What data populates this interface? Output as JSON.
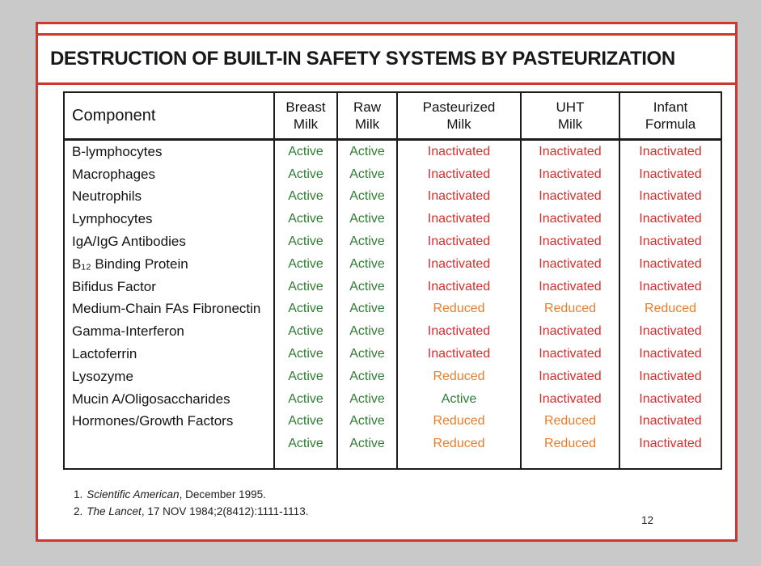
{
  "window": {
    "background_color": "#c9c9c9",
    "page_number": "12"
  },
  "slide": {
    "title": "DESTRUCTION OF BUILT-IN SAFETY SYSTEMS BY PASTEURIZATION",
    "accent_color": "#c9392f",
    "background_color": "#ffffff"
  },
  "table": {
    "headers": [
      "Component",
      "Breast\nMilk",
      "Raw\nMilk",
      "Pasteurized\nMilk",
      "UHT\nMilk",
      "Infant\nFormula"
    ],
    "status_colors": {
      "Active": "#2e7d32",
      "Inactivated": "#d32f2f",
      "Reduced": "#e87d2c"
    },
    "rows": [
      {
        "component": "B-lymphocytes",
        "values": [
          "Active",
          "Active",
          "Inactivated",
          "Inactivated",
          "Inactivated"
        ]
      },
      {
        "component": "Macrophages",
        "values": [
          "Active",
          "Active",
          "Inactivated",
          "Inactivated",
          "Inactivated"
        ]
      },
      {
        "component": "Neutrophils",
        "values": [
          "Active",
          "Active",
          "Inactivated",
          "Inactivated",
          "Inactivated"
        ]
      },
      {
        "component": "Lymphocytes",
        "values": [
          "Active",
          "Active",
          "Inactivated",
          "Inactivated",
          "Inactivated"
        ]
      },
      {
        "component": "IgA/IgG Antibodies",
        "values": [
          "Active",
          "Active",
          "Inactivated",
          "Inactivated",
          "Inactivated"
        ]
      },
      {
        "component": "B₁₂ Binding Protein",
        "values": [
          "Active",
          "Active",
          "Inactivated",
          "Inactivated",
          "Inactivated"
        ]
      },
      {
        "component": "Bifidus Factor",
        "values": [
          "Active",
          "Active",
          "Inactivated",
          "Inactivated",
          "Inactivated"
        ]
      },
      {
        "component": "Medium-Chain FAs Fibronectin",
        "values": [
          "Active",
          "Active",
          "Reduced",
          "Reduced",
          "Reduced"
        ]
      },
      {
        "component": "Gamma-Interferon",
        "values": [
          "Active",
          "Active",
          "Inactivated",
          "Inactivated",
          "Inactivated"
        ]
      },
      {
        "component": "Lactoferrin",
        "values": [
          "Active",
          "Active",
          "Inactivated",
          "Inactivated",
          "Inactivated"
        ]
      },
      {
        "component": "Lysozyme",
        "values": [
          "Active",
          "Active",
          "Reduced",
          "Inactivated",
          "Inactivated"
        ]
      },
      {
        "component": "Mucin A/Oligosaccharides",
        "values": [
          "Active",
          "Active",
          "Active",
          "Inactivated",
          "Inactivated"
        ]
      },
      {
        "component": "Hormones/Growth Factors",
        "values": [
          "Active",
          "Active",
          "Reduced",
          "Reduced",
          "Inactivated"
        ]
      },
      {
        "component": "",
        "values": [
          "Active",
          "Active",
          "Reduced",
          "Reduced",
          "Inactivated"
        ]
      }
    ]
  },
  "footnotes": [
    {
      "marker": "1.",
      "source": "Scientific American",
      "detail": ", December 1995."
    },
    {
      "marker": "2.",
      "source": "The Lancet",
      "detail": ", 17 NOV 1984;2(8412):1111-1113."
    }
  ]
}
